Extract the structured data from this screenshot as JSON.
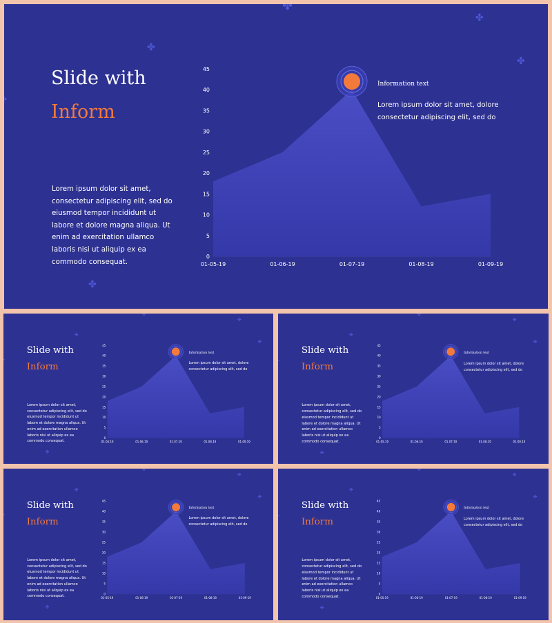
{
  "colors": {
    "background": "#f2c4ac",
    "slide": "#2d3192",
    "area": "#3f42b6",
    "accent": "#f47a3c",
    "text": "#ffffff",
    "deco": "#4d56d4"
  },
  "slide": {
    "title_line1": "Slide with",
    "title_line2": "Inform",
    "body_text": "Lorem ipsum dolor sit amet, consectetur adipiscing elit, sed do eiusmod tempor incididunt ut labore et dolore magna aliqua. Ut enim ad exercitation ullamco laboris nisi ut aliquip ex ea commodo consequat.",
    "info_title": "Information text",
    "info_body": "Lorem ipsum dolor sit amet, dolore consectetur adipiscing elit, sed do"
  },
  "decorative_icon": "four-petal-flower-icon",
  "chart_data": {
    "type": "area",
    "x": [
      "01-05-19",
      "01-06-19",
      "01-07-19",
      "01-08-19",
      "01-09-19"
    ],
    "values": [
      18,
      25,
      40,
      12,
      15
    ],
    "ylim": [
      0,
      45
    ],
    "yticks": [
      0,
      5,
      10,
      15,
      20,
      25,
      30,
      35,
      40,
      45
    ],
    "highlight_index": 2,
    "grid": false
  }
}
